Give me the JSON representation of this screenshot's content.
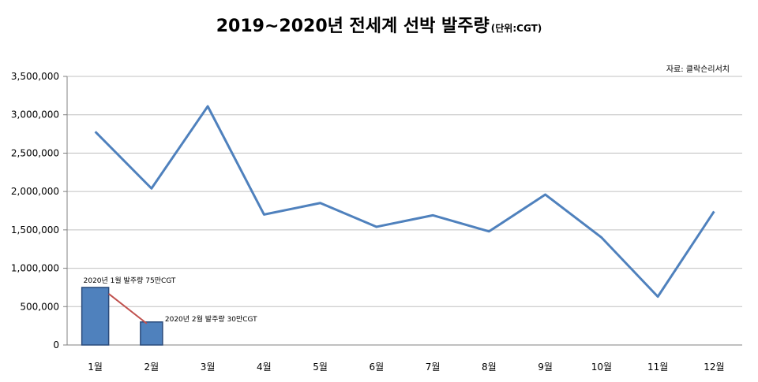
{
  "chart_data": {
    "type": "line",
    "title": "2019~2020년 전세계 선박 발주량",
    "unit": "(단위:CGT)",
    "source": "자료: 클락슨리서치",
    "categories": [
      "1월",
      "2월",
      "3월",
      "4월",
      "5월",
      "6월",
      "7월",
      "8월",
      "9월",
      "10월",
      "11월",
      "12월"
    ],
    "series": [
      {
        "values": [
          2780000,
          2040000,
          3110000,
          1700000,
          1850000,
          1540000,
          1690000,
          1480000,
          1960000,
          1400000,
          630000,
          1740000
        ]
      }
    ],
    "bars": [
      {
        "category": "1월",
        "value": 750000,
        "label": "2020년 1월 발주량 75만CGT"
      },
      {
        "category": "2월",
        "value": 300000,
        "label": "2020년 2월 발주량 30만CGT"
      }
    ],
    "y_ticks": [
      "0",
      "500,000",
      "1,000,000",
      "1,500,000",
      "2,000,000",
      "2,500,000",
      "3,000,000",
      "3,500,000"
    ],
    "ylim": [
      0,
      3500000
    ],
    "grid": true,
    "colors": {
      "line": "#4f81bd",
      "bar": "#4f81bd",
      "bar_border": "#2a4a7a",
      "connector": "#c0504d",
      "grid": "#c0c0c0"
    }
  }
}
